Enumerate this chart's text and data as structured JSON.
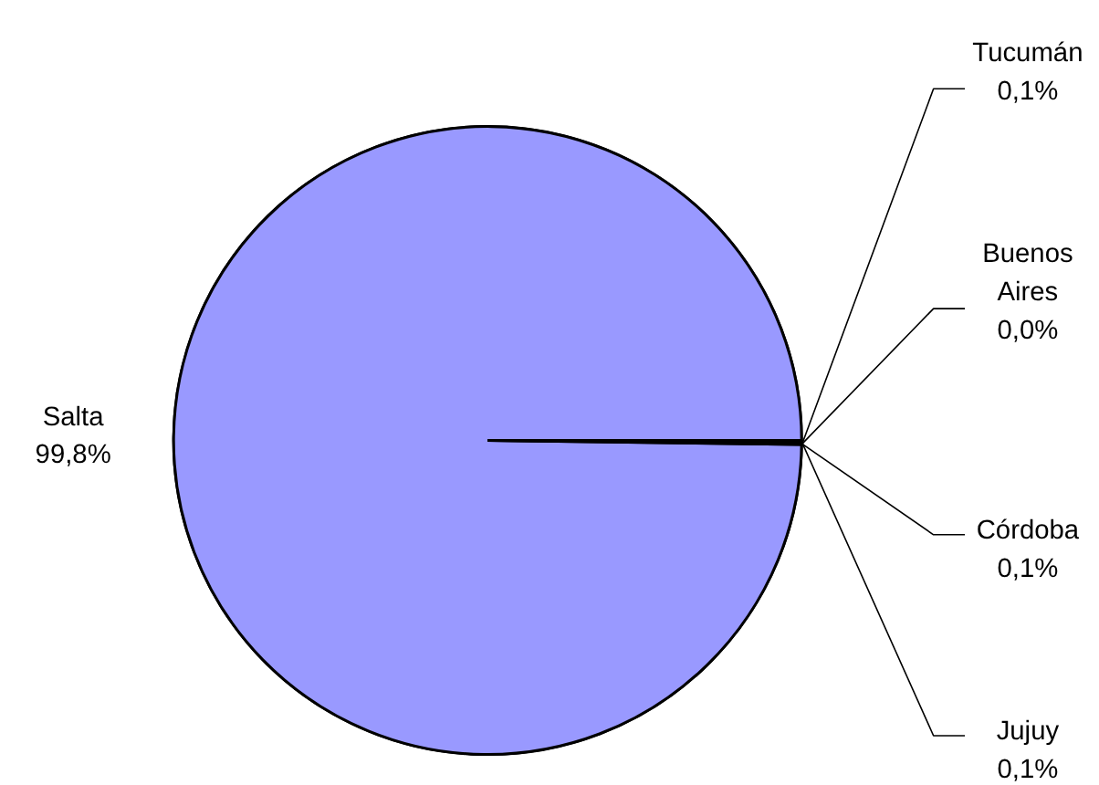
{
  "chart_data": {
    "type": "pie",
    "categories": [
      "Salta",
      "Tucumán",
      "Buenos Aires",
      "Córdoba",
      "Jujuy"
    ],
    "values": [
      99.8,
      0.1,
      0.0,
      0.1,
      0.1
    ],
    "colors": [
      "#9999ff",
      "#9999ff",
      "#9999ff",
      "#9999ff",
      "#9999ff"
    ],
    "value_labels": [
      "99,8%",
      "0,1%",
      "0,0%",
      "0,1%",
      "0,1%"
    ]
  }
}
